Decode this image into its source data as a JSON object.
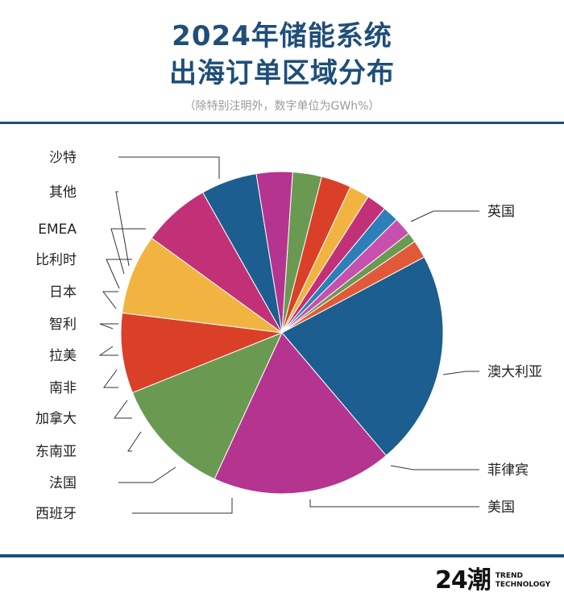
{
  "header": {
    "title_line1": "2024年储能系统",
    "title_line2": "出海订单区域分布",
    "subtitle": "（除特别注明外，数字单位为GWh%）"
  },
  "logo": {
    "mark": "24潮",
    "line1": "TREND",
    "line2": "TECHNOLOGY"
  },
  "colors": {
    "title": "#1f4e79",
    "rule": "#1f4e79"
  },
  "chart_data": {
    "type": "pie",
    "title": "2024年储能系统出海订单区域分布",
    "unit": "GWh%",
    "start_angle_deg": -28,
    "direction": "clockwise",
    "slices": [
      {
        "label": "沙特",
        "value": 21.5,
        "color": "#1b5e8f"
      },
      {
        "label": "英国",
        "value": 18.0,
        "color": "#b5348f"
      },
      {
        "label": "澳大利亚",
        "value": 12.0,
        "color": "#6a9a52"
      },
      {
        "label": "菲律宾",
        "value": 8.0,
        "color": "#da4027"
      },
      {
        "label": "美国",
        "value": 8.0,
        "color": "#f2b441"
      },
      {
        "label": "西班牙",
        "value": 6.8,
        "color": "#c23178"
      },
      {
        "label": "法国",
        "value": 5.6,
        "color": "#1b5e8f"
      },
      {
        "label": "东南亚",
        "value": 3.6,
        "color": "#b5348f"
      },
      {
        "label": "加拿大",
        "value": 2.9,
        "color": "#6a9a52"
      },
      {
        "label": "南非",
        "value": 3.0,
        "color": "#da4027"
      },
      {
        "label": "拉美",
        "value": 2.0,
        "color": "#f2b441"
      },
      {
        "label": "智利",
        "value": 2.0,
        "color": "#c23178"
      },
      {
        "label": "日本",
        "value": 1.6,
        "color": "#2d7fb8"
      },
      {
        "label": "比利时",
        "value": 1.8,
        "color": "#c74fae"
      },
      {
        "label": "EMEA",
        "value": 1.0,
        "color": "#6a9a52"
      },
      {
        "label": "其他",
        "value": 1.8,
        "color": "#e05a3a"
      }
    ]
  }
}
